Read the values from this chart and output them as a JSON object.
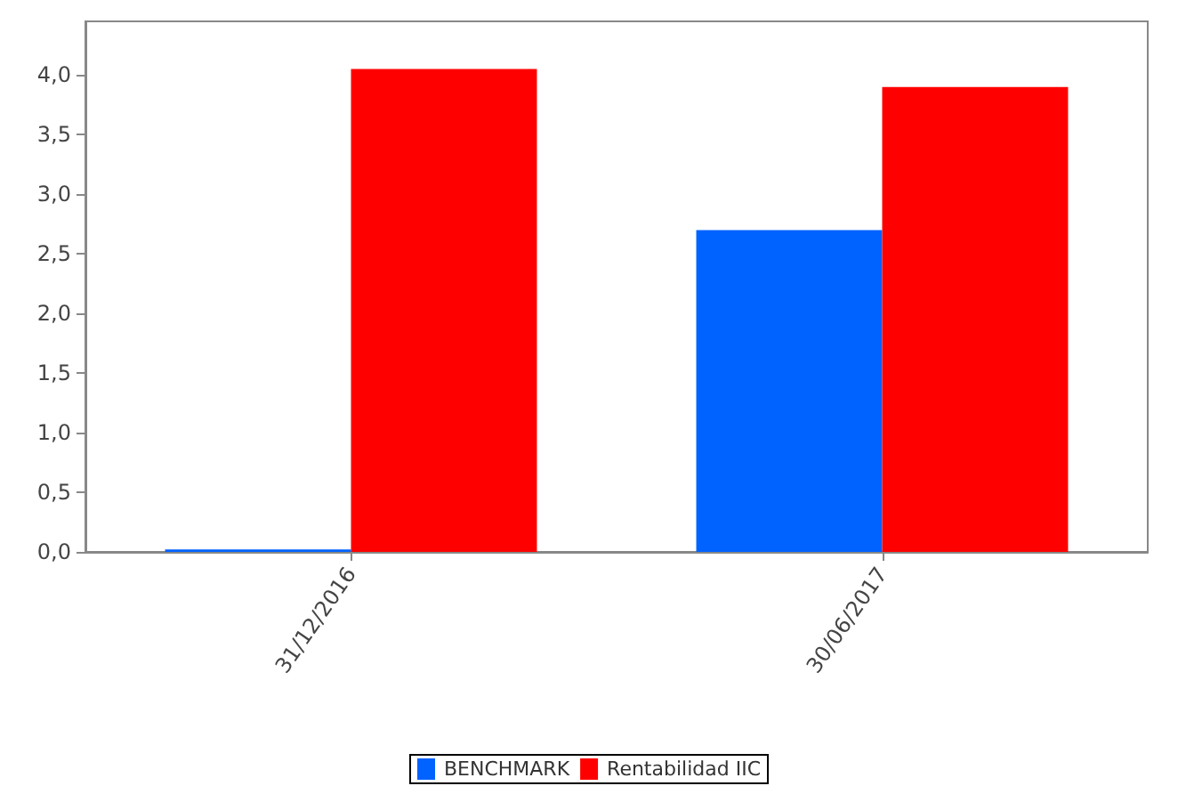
{
  "chart_data": {
    "type": "bar",
    "categories": [
      "31/12/2016",
      "30/06/2017"
    ],
    "series": [
      {
        "name": "BENCHMARK",
        "color": "#0062ff",
        "values": [
          0.02,
          2.7
        ]
      },
      {
        "name": "Rentabilidad IIC",
        "color": "#ff0000",
        "values": [
          4.05,
          3.9
        ]
      }
    ],
    "ylim": [
      0,
      4.45
    ],
    "yticks": [
      {
        "value": 0,
        "label": "0,0"
      },
      {
        "value": 0.5,
        "label": "0,5"
      },
      {
        "value": 1,
        "label": "1,0"
      },
      {
        "value": 1.5,
        "label": "1,5"
      },
      {
        "value": 2,
        "label": "2,0"
      },
      {
        "value": 2.5,
        "label": "2,5"
      },
      {
        "value": 3,
        "label": "3,0"
      },
      {
        "value": 3.5,
        "label": "3,5"
      },
      {
        "value": 4,
        "label": "4,0"
      }
    ],
    "grid": false,
    "legend": "bottom"
  }
}
